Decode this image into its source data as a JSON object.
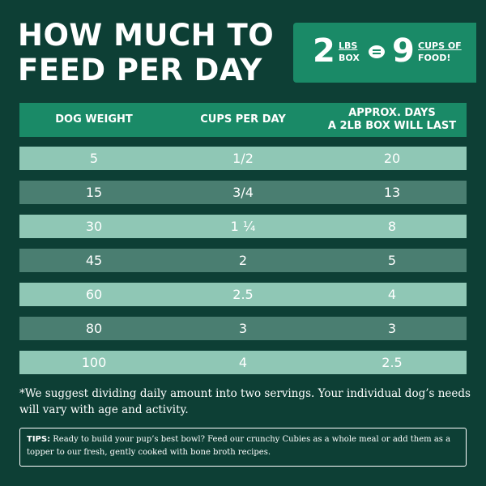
{
  "title": {
    "line1": "HOW MUCH TO",
    "line2": "FEED PER DAY"
  },
  "badge": {
    "lbs_number": "2",
    "lbs_label": "LBS",
    "box_label": "BOX",
    "cups_number": "9",
    "cups_label": "CUPS OF",
    "food_label": "FOOD!",
    "equals_icon": "equals-icon"
  },
  "table": {
    "headers": {
      "weight": "DOG WEIGHT",
      "cups": "CUPS PER DAY",
      "days_line1": "APPROX. DAYS",
      "days_line2": "A 2LB BOX WILL LAST"
    },
    "rows": [
      {
        "weight": "5",
        "cups": "1/2",
        "days": "20"
      },
      {
        "weight": "15",
        "cups": "3/4",
        "days": "13"
      },
      {
        "weight": "30",
        "cups": "1 ¼",
        "days": "8"
      },
      {
        "weight": "45",
        "cups": "2",
        "days": "5"
      },
      {
        "weight": "60",
        "cups": "2.5",
        "days": "4"
      },
      {
        "weight": "80",
        "cups": "3",
        "days": "3"
      },
      {
        "weight": "100",
        "cups": "4",
        "days": "2.5"
      }
    ]
  },
  "note": "*We suggest dividing daily amount into two servings. Your individual dog’s needs will vary with age and activity.",
  "tips": {
    "label": "TIPS:",
    "text": "Ready to build your pup’s best bowl? Feed our crunchy Cubies as a whole meal or add them as a topper to our fresh, gently cooked with bone broth recipes."
  },
  "colors": {
    "background": "#0d3f35",
    "accent": "#1a8a67",
    "row_light": "#8fc7b5",
    "row_dark": "#4a7e71"
  }
}
